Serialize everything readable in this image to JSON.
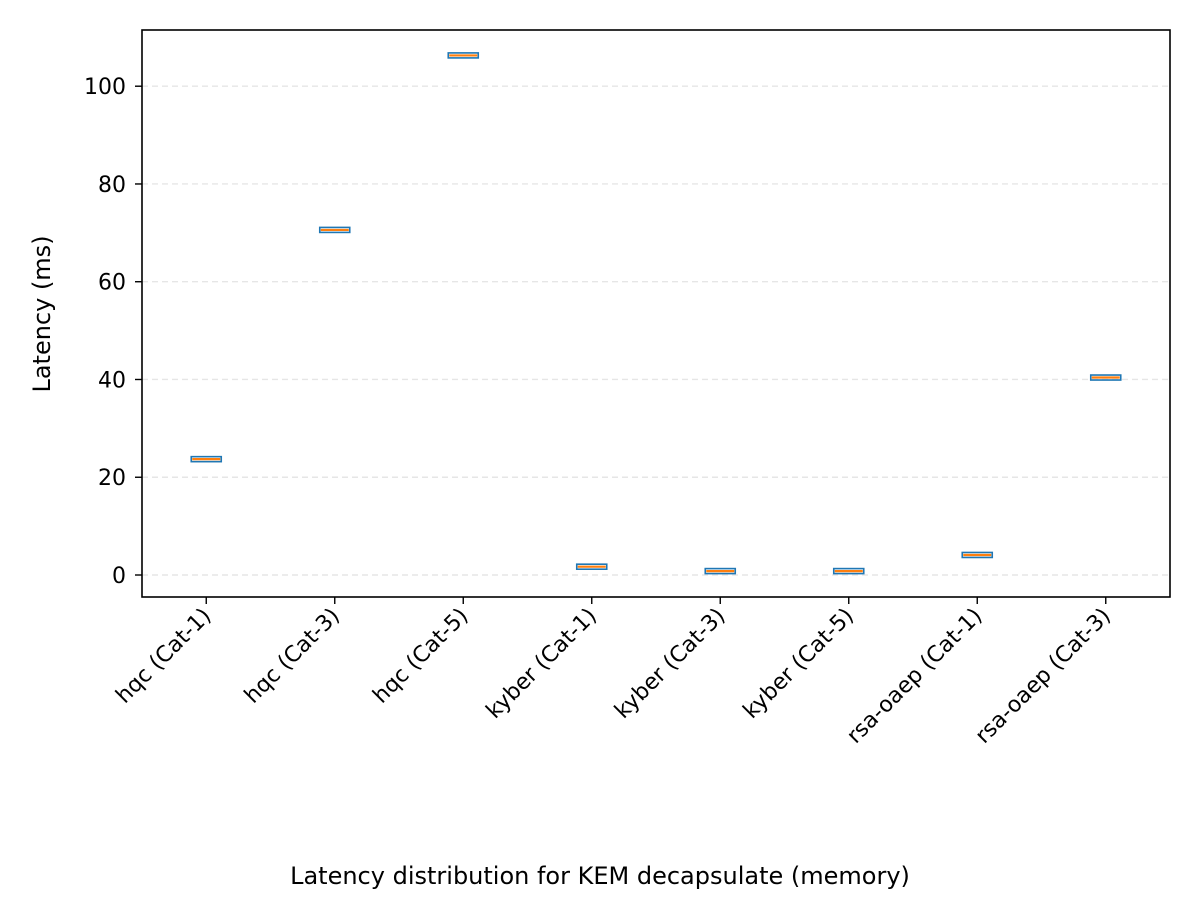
{
  "chart_data": {
    "type": "box",
    "caption": "Latency distribution for KEM decapsulate (memory)",
    "ylabel": "Latency (ms)",
    "xlabel": "",
    "ylim": [
      -4.5,
      111.5
    ],
    "yticks": [
      0,
      20,
      40,
      60,
      80,
      100
    ],
    "grid": "y-dashed",
    "categories": [
      "hqc (Cat-1)",
      "hqc (Cat-3)",
      "hqc (Cat-5)",
      "kyber (Cat-1)",
      "kyber (Cat-3)",
      "kyber (Cat-5)",
      "rsa-oaep (Cat-1)",
      "rsa-oaep (Cat-3)"
    ],
    "medians": [
      23.7,
      70.6,
      106.3,
      1.7,
      0.8,
      0.8,
      4.1,
      40.4
    ],
    "box_color": "#1f77b4",
    "median_color": "#ff7f0e",
    "grid_color": "#e6e6e6"
  }
}
